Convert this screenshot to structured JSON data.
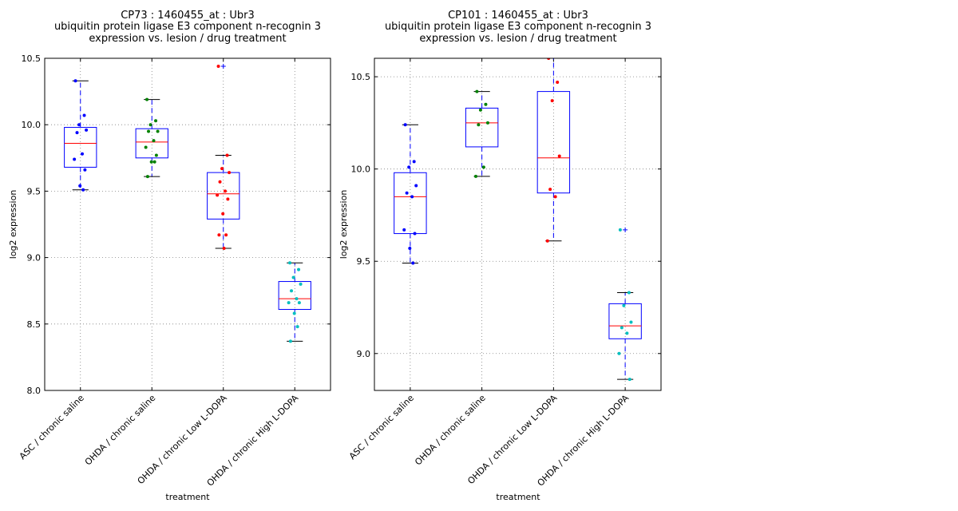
{
  "chart_data": [
    {
      "type": "box",
      "title": [
        "CP73 : 1460455_at : Ubr3",
        "ubiquitin protein ligase E3 component n-recognin 3",
        "expression vs. lesion / drug treatment"
      ],
      "xlabel": "treatment",
      "ylabel": "log2 expression",
      "ylim": [
        8.0,
        10.5
      ],
      "yticks": [
        "8.0",
        "8.5",
        "9.0",
        "9.5",
        "10.0",
        "10.5"
      ],
      "grid": true,
      "categories": [
        "ASC / chronic saline",
        "OHDA / chronic saline",
        "OHDA / chronic Low L-DOPA",
        "OHDA / chronic High L-DOPA"
      ],
      "point_colors": [
        "#0000ff",
        "#008000",
        "#ff0000",
        "#00bfbf"
      ],
      "boxes": [
        {
          "whisker_low": 9.51,
          "q1": 9.68,
          "median": 9.86,
          "q3": 9.98,
          "whisker_high": 10.33,
          "outliers": []
        },
        {
          "whisker_low": 9.61,
          "q1": 9.75,
          "median": 9.87,
          "q3": 9.97,
          "whisker_high": 10.19,
          "outliers": []
        },
        {
          "whisker_low": 9.07,
          "q1": 9.29,
          "median": 9.48,
          "q3": 9.64,
          "whisker_high": 9.77,
          "outliers": [
            10.44
          ]
        },
        {
          "whisker_low": 8.37,
          "q1": 8.61,
          "median": 8.69,
          "q3": 8.82,
          "whisker_high": 8.96,
          "outliers": []
        }
      ],
      "points": [
        [
          10.33,
          10.07,
          10.0,
          9.96,
          9.94,
          9.78,
          9.74,
          9.66,
          9.54,
          9.51
        ],
        [
          10.19,
          10.03,
          10.0,
          9.95,
          9.95,
          9.88,
          9.83,
          9.77,
          9.72,
          9.72,
          9.61
        ],
        [
          10.44,
          9.77,
          9.67,
          9.64,
          9.57,
          9.5,
          9.47,
          9.44,
          9.33,
          9.17,
          9.17,
          9.07
        ],
        [
          8.96,
          8.91,
          8.85,
          8.8,
          8.75,
          8.69,
          8.66,
          8.66,
          8.58,
          8.48,
          8.37
        ]
      ]
    },
    {
      "type": "box",
      "title": [
        "CP101 : 1460455_at : Ubr3",
        "ubiquitin protein ligase E3 component n-recognin 3",
        "expression vs. lesion / drug treatment"
      ],
      "xlabel": "treatment",
      "ylabel": "log2 expression",
      "ylim": [
        8.8,
        10.6
      ],
      "yticks": [
        "9.0",
        "9.5",
        "10.0",
        "10.5"
      ],
      "grid": true,
      "categories": [
        "ASC / chronic saline",
        "OHDA / chronic saline",
        "OHDA / chronic Low L-DOPA",
        "OHDA / chronic High L-DOPA"
      ],
      "point_colors": [
        "#0000ff",
        "#008000",
        "#ff0000",
        "#00bfbf"
      ],
      "boxes": [
        {
          "whisker_low": 9.49,
          "q1": 9.65,
          "median": 9.85,
          "q3": 9.98,
          "whisker_high": 10.24,
          "outliers": []
        },
        {
          "whisker_low": 9.96,
          "q1": 10.12,
          "median": 10.25,
          "q3": 10.33,
          "whisker_high": 10.42,
          "outliers": []
        },
        {
          "whisker_low": 9.61,
          "q1": 9.87,
          "median": 10.06,
          "q3": 10.42,
          "whisker_high": 10.6,
          "outliers": []
        },
        {
          "whisker_low": 8.86,
          "q1": 9.08,
          "median": 9.15,
          "q3": 9.27,
          "whisker_high": 9.33,
          "outliers": [
            9.67
          ]
        }
      ],
      "points": [
        [
          10.24,
          10.04,
          10.01,
          9.91,
          9.87,
          9.85,
          9.67,
          9.65,
          9.57,
          9.49
        ],
        [
          10.42,
          10.35,
          10.32,
          10.25,
          10.24,
          10.01,
          9.96
        ],
        [
          10.6,
          10.47,
          10.37,
          10.07,
          9.89,
          9.85,
          9.61
        ],
        [
          9.67,
          9.33,
          9.26,
          9.17,
          9.14,
          9.11,
          9.0,
          8.86
        ]
      ]
    }
  ]
}
